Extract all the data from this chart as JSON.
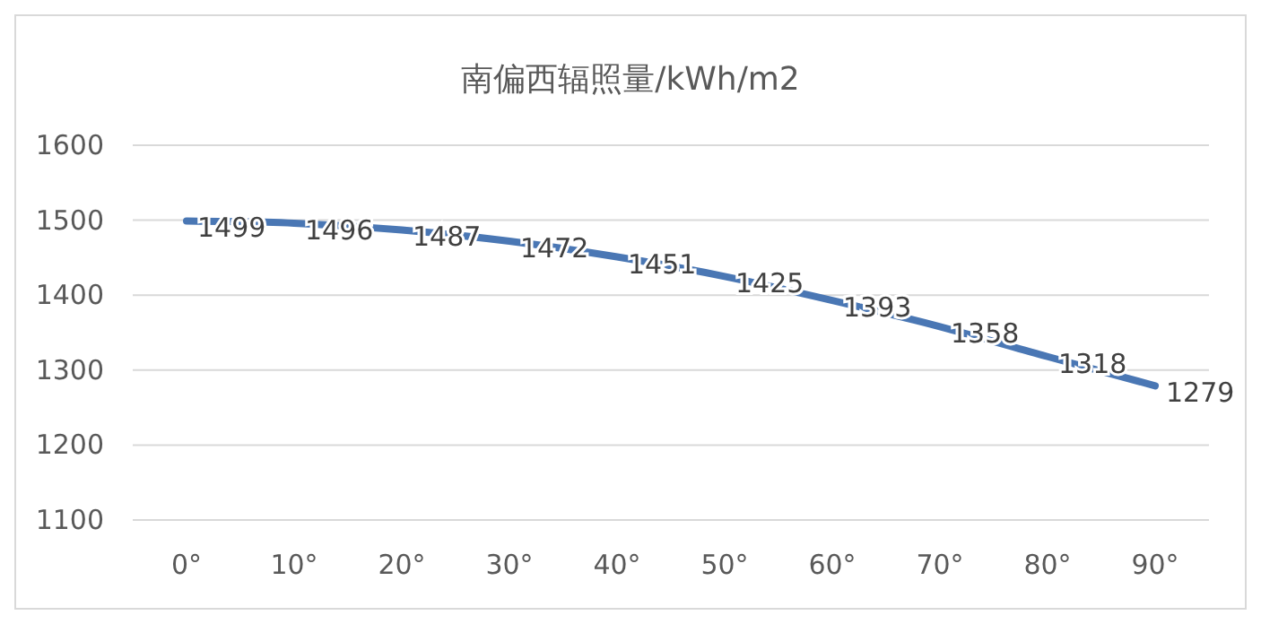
{
  "chart_data": {
    "type": "line",
    "title": "南偏西辐照量/kWh/m2",
    "categories": [
      "0°",
      "10°",
      "20°",
      "30°",
      "40°",
      "50°",
      "60°",
      "70°",
      "80°",
      "90°"
    ],
    "series": [
      {
        "color": "#4a77b4",
        "values": [
          1499,
          1496,
          1487,
          1472,
          1451,
          1425,
          1393,
          1358,
          1318,
          1279
        ]
      }
    ],
    "ylim": [
      1100,
      1600
    ],
    "yticks": [
      1100,
      1200,
      1300,
      1400,
      1500,
      1600
    ],
    "grid": "y",
    "data_labels": true,
    "marker": "none",
    "line_style": "solid"
  }
}
